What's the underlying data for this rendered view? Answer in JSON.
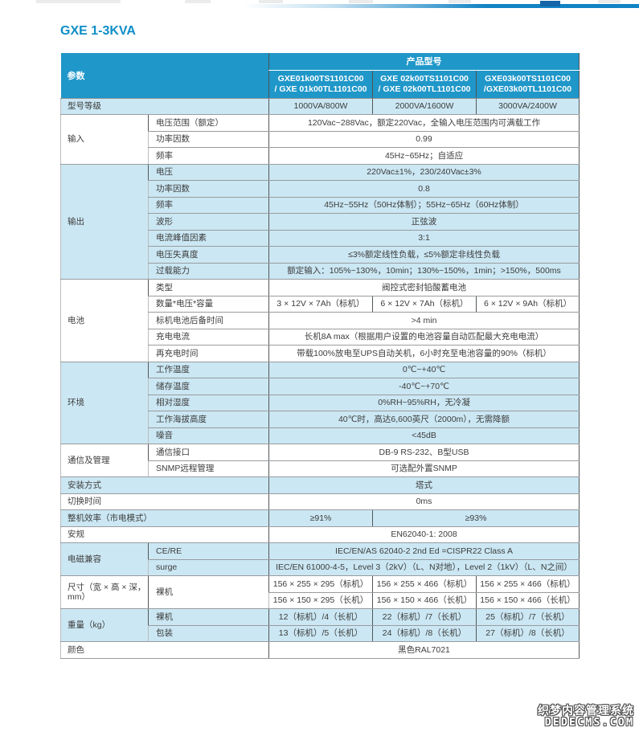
{
  "page": {
    "title": "GXE 1-3KVA",
    "watermark_line1": "织梦内容管理系统",
    "watermark_line2": "DEDECMS.COM"
  },
  "colors": {
    "header_blue": "#1f97c9",
    "row_highlight": "#cbe7f3",
    "title_blue": "#0d8ec8",
    "topbar_blue": "#1283c4",
    "chip_blue": "#1565a8"
  },
  "table": {
    "header": {
      "param_label": "参数",
      "product_model_label": "产品型号",
      "models": [
        "GXE01k00TS1101C00\n/ GXE 01k00TL1101C00",
        "GXE 02k00TS1101C00\n/ GXE 02k00TL1101C00",
        "GXE03k00TS1101C00\n/GXE03k00TL1101C00"
      ]
    },
    "rows": [
      {
        "shade": true,
        "cells": [
          {
            "text": "型号等级",
            "kind": "group",
            "colspan": 2
          },
          {
            "text": "1000VA/800W",
            "kind": "value"
          },
          {
            "text": "2000VA/1600W",
            "kind": "value"
          },
          {
            "text": "3000VA/2400W",
            "kind": "value"
          }
        ]
      },
      {
        "shade": false,
        "cells": [
          {
            "text": "输入",
            "kind": "group",
            "rowspan": 3
          },
          {
            "text": "电压范围（额定）",
            "kind": "sub"
          },
          {
            "text": "120Vac~288Vac，额定220Vac，全输入电压范围内可满载工作",
            "kind": "value",
            "colspan": 3
          }
        ]
      },
      {
        "shade": false,
        "cells": [
          {
            "text": "功率因数",
            "kind": "sub"
          },
          {
            "text": "0.99",
            "kind": "value",
            "colspan": 3
          }
        ]
      },
      {
        "shade": false,
        "cells": [
          {
            "text": "频率",
            "kind": "sub"
          },
          {
            "text": "45Hz~65Hz；自适应",
            "kind": "value",
            "colspan": 3
          }
        ]
      },
      {
        "shade": true,
        "cells": [
          {
            "text": "输出",
            "kind": "group",
            "rowspan": 7
          },
          {
            "text": "电压",
            "kind": "sub"
          },
          {
            "text": "220Vac±1%，230/240Vac±3%",
            "kind": "value",
            "colspan": 3
          }
        ]
      },
      {
        "shade": true,
        "cells": [
          {
            "text": "功率因数",
            "kind": "sub"
          },
          {
            "text": "0.8",
            "kind": "value",
            "colspan": 3
          }
        ]
      },
      {
        "shade": true,
        "cells": [
          {
            "text": "频率",
            "kind": "sub"
          },
          {
            "text": "45Hz~55Hz（50Hz体制）；55Hz~65Hz（60Hz体制）",
            "kind": "value",
            "colspan": 3
          }
        ]
      },
      {
        "shade": true,
        "cells": [
          {
            "text": "波形",
            "kind": "sub"
          },
          {
            "text": "正弦波",
            "kind": "value",
            "colspan": 3
          }
        ]
      },
      {
        "shade": true,
        "cells": [
          {
            "text": "电流峰值因素",
            "kind": "sub"
          },
          {
            "text": "3:1",
            "kind": "value",
            "colspan": 3
          }
        ]
      },
      {
        "shade": true,
        "cells": [
          {
            "text": "电压失真度",
            "kind": "sub"
          },
          {
            "text": "≤3%额定线性负载，≤5%额定非线性负载",
            "kind": "value",
            "colspan": 3
          }
        ]
      },
      {
        "shade": true,
        "cells": [
          {
            "text": "过载能力",
            "kind": "sub"
          },
          {
            "text": "额定输入：105%~130%，10min；130%~150%，1min；>150%，500ms",
            "kind": "value",
            "colspan": 3
          }
        ]
      },
      {
        "shade": false,
        "cells": [
          {
            "text": "电池",
            "kind": "group",
            "rowspan": 5
          },
          {
            "text": "类型",
            "kind": "sub"
          },
          {
            "text": "阀控式密封铅酸蓄电池",
            "kind": "value",
            "colspan": 3
          }
        ]
      },
      {
        "shade": false,
        "cells": [
          {
            "text": "数量*电压*容量",
            "kind": "sub"
          },
          {
            "text": "3 × 12V × 7Ah（标机）",
            "kind": "value"
          },
          {
            "text": "6 × 12V × 7Ah（标机）",
            "kind": "value"
          },
          {
            "text": "6 × 12V × 9Ah（标机）",
            "kind": "value"
          }
        ]
      },
      {
        "shade": false,
        "cells": [
          {
            "text": "标机电池后备时间",
            "kind": "sub"
          },
          {
            "text": ">4 min",
            "kind": "value",
            "colspan": 3
          }
        ]
      },
      {
        "shade": false,
        "cells": [
          {
            "text": "充电电流",
            "kind": "sub"
          },
          {
            "text": "长机8A max（根据用户设置的电池容量自动匹配最大充电电流）",
            "kind": "value",
            "colspan": 3
          }
        ]
      },
      {
        "shade": false,
        "cells": [
          {
            "text": "再充电时间",
            "kind": "sub"
          },
          {
            "text": "带载100%放电至UPS自动关机，6小时充至电池容量的90%（标机）",
            "kind": "value",
            "colspan": 3
          }
        ]
      },
      {
        "shade": true,
        "cells": [
          {
            "text": "环境",
            "kind": "group",
            "rowspan": 5
          },
          {
            "text": "工作温度",
            "kind": "sub"
          },
          {
            "text": "0℃~+40℃",
            "kind": "value",
            "colspan": 3
          }
        ]
      },
      {
        "shade": true,
        "cells": [
          {
            "text": "储存温度",
            "kind": "sub"
          },
          {
            "text": "-40℃~+70℃",
            "kind": "value",
            "colspan": 3
          }
        ]
      },
      {
        "shade": true,
        "cells": [
          {
            "text": "相对湿度",
            "kind": "sub"
          },
          {
            "text": "0%RH~95%RH，无冷凝",
            "kind": "value",
            "colspan": 3
          }
        ]
      },
      {
        "shade": true,
        "cells": [
          {
            "text": "工作海拔高度",
            "kind": "sub"
          },
          {
            "text": "40℃时，高达6,600英尺（2000m），无需降额",
            "kind": "value",
            "colspan": 3
          }
        ]
      },
      {
        "shade": true,
        "cells": [
          {
            "text": "噪音",
            "kind": "sub"
          },
          {
            "text": "<45dB",
            "kind": "value",
            "colspan": 3
          }
        ]
      },
      {
        "shade": false,
        "cells": [
          {
            "text": "通信及管理",
            "kind": "group",
            "rowspan": 2
          },
          {
            "text": "通信接口",
            "kind": "sub"
          },
          {
            "text": "DB-9 RS-232、B型USB",
            "kind": "value",
            "colspan": 3
          }
        ]
      },
      {
        "shade": false,
        "cells": [
          {
            "text": "SNMP远程管理",
            "kind": "sub"
          },
          {
            "text": "可选配外置SNMP",
            "kind": "value",
            "colspan": 3
          }
        ]
      },
      {
        "shade": true,
        "cells": [
          {
            "text": "安装方式",
            "kind": "group",
            "colspan": 2
          },
          {
            "text": "塔式",
            "kind": "value",
            "colspan": 3
          }
        ]
      },
      {
        "shade": false,
        "cells": [
          {
            "text": "切换时间",
            "kind": "group",
            "colspan": 2
          },
          {
            "text": "0ms",
            "kind": "value",
            "colspan": 3
          }
        ]
      },
      {
        "shade": true,
        "cells": [
          {
            "text": "整机效率（市电模式）",
            "kind": "group",
            "colspan": 2
          },
          {
            "text": "≥91%",
            "kind": "value"
          },
          {
            "text": "≥93%",
            "kind": "value",
            "colspan": 2
          }
        ]
      },
      {
        "shade": false,
        "cells": [
          {
            "text": "安规",
            "kind": "group",
            "colspan": 2
          },
          {
            "text": "EN62040-1: 2008",
            "kind": "value",
            "colspan": 3
          }
        ]
      },
      {
        "shade": true,
        "cells": [
          {
            "text": "电磁兼容",
            "kind": "group",
            "rowspan": 2
          },
          {
            "text": "CE/RE",
            "kind": "sub"
          },
          {
            "text": "IEC/EN/AS 62040-2 2nd Ed =CISPR22 Class A",
            "kind": "value",
            "colspan": 3
          }
        ]
      },
      {
        "shade": true,
        "cells": [
          {
            "text": "surge",
            "kind": "sub"
          },
          {
            "text": "IEC/EN 61000-4-5，Level 3（2kV）（L、N对地），Level 2（1kV）（L、N之间）",
            "kind": "value",
            "colspan": 3
          }
        ]
      },
      {
        "shade": false,
        "cells": [
          {
            "text": "尺寸（宽 × 高 × 深，mm）",
            "kind": "group",
            "rowspan": 2
          },
          {
            "text": "裸机",
            "kind": "sub",
            "rowspan": 2
          },
          {
            "text": "156 × 255 × 295（标机）",
            "kind": "value"
          },
          {
            "text": "156 × 255 × 466（标机）",
            "kind": "value"
          },
          {
            "text": "156 × 255 × 466（标机）",
            "kind": "value"
          }
        ]
      },
      {
        "shade": false,
        "cells": [
          {
            "text": "156 × 150 × 295（长机）",
            "kind": "value"
          },
          {
            "text": "156 × 150 × 466（长机）",
            "kind": "value"
          },
          {
            "text": "156 × 150 × 466（长机）",
            "kind": "value"
          }
        ]
      },
      {
        "shade": true,
        "cells": [
          {
            "text": "重量（kg）",
            "kind": "group",
            "rowspan": 2
          },
          {
            "text": "裸机",
            "kind": "sub"
          },
          {
            "text": "12（标机）/4（长机）",
            "kind": "value"
          },
          {
            "text": "22（标机）/7（长机）",
            "kind": "value"
          },
          {
            "text": "25（标机）/7（长机）",
            "kind": "value"
          }
        ]
      },
      {
        "shade": true,
        "cells": [
          {
            "text": "包装",
            "kind": "sub"
          },
          {
            "text": "13（标机）/5（长机）",
            "kind": "value"
          },
          {
            "text": "24（标机）/8（长机）",
            "kind": "value"
          },
          {
            "text": "27（标机）/8（长机）",
            "kind": "value"
          }
        ]
      },
      {
        "shade": false,
        "cells": [
          {
            "text": "颜色",
            "kind": "group",
            "colspan": 2
          },
          {
            "text": "黑色RAL7021",
            "kind": "value",
            "colspan": 3
          }
        ]
      }
    ]
  }
}
